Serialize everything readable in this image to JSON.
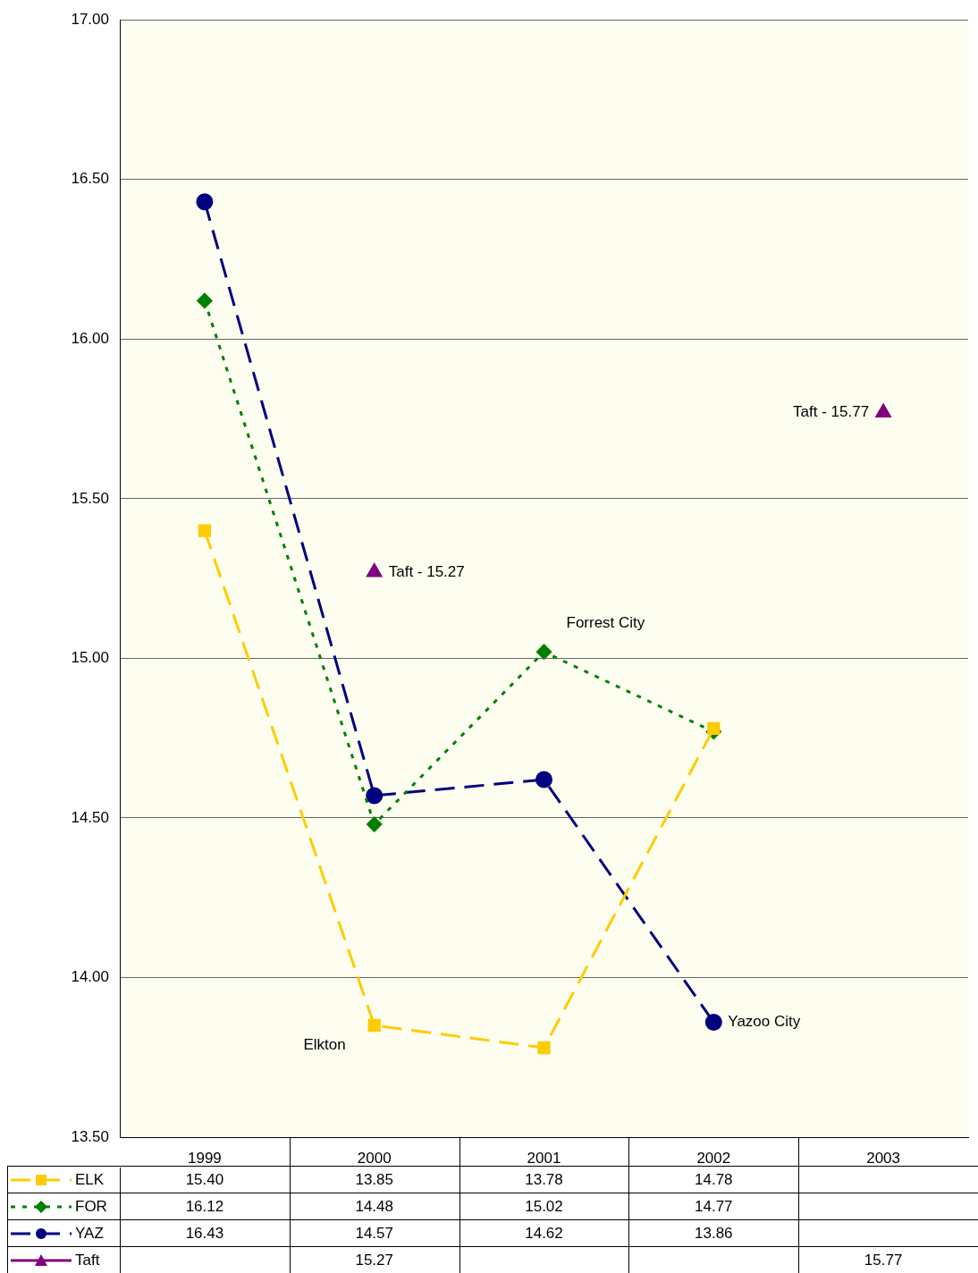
{
  "chart_data": {
    "type": "line",
    "categories": [
      "1999",
      "2000",
      "2001",
      "2002",
      "2003"
    ],
    "series": [
      {
        "name": "ELK",
        "color": "#ffcc00",
        "marker": "square",
        "line_style": "dashed",
        "values": [
          15.4,
          13.85,
          13.78,
          14.78,
          null
        ],
        "value_labels": [
          "15.40",
          "13.85",
          "13.78",
          "14.78",
          null
        ]
      },
      {
        "name": "FOR",
        "color": "#008000",
        "marker": "diamond",
        "line_style": "dotted",
        "values": [
          16.12,
          14.48,
          15.02,
          14.77,
          null
        ],
        "value_labels": [
          "16.12",
          "14.48",
          "15.02",
          "14.77",
          null
        ]
      },
      {
        "name": "YAZ",
        "color": "#000080",
        "marker": "circle",
        "line_style": "dashed",
        "values": [
          16.43,
          14.57,
          14.62,
          13.86,
          null
        ],
        "value_labels": [
          "16.43",
          "14.57",
          "14.62",
          "13.86",
          null
        ]
      },
      {
        "name": "Taft",
        "type": "scatter",
        "color": "#800080",
        "marker": "triangle",
        "line_style": "solid",
        "values": [
          null,
          15.27,
          null,
          null,
          15.77
        ],
        "value_labels": [
          null,
          "15.27",
          null,
          null,
          "15.77"
        ]
      }
    ],
    "ylim": [
      13.5,
      17
    ],
    "yticks": [
      {
        "value": 13.5,
        "label": "13.50"
      },
      {
        "value": 14,
        "label": "14.00"
      },
      {
        "value": 14.5,
        "label": "14.50"
      },
      {
        "value": 15,
        "label": "15.00"
      },
      {
        "value": 15.5,
        "label": "15.50"
      },
      {
        "value": 16,
        "label": "16.00"
      },
      {
        "value": 16.5,
        "label": "16.50"
      },
      {
        "value": 17,
        "label": "17.00"
      }
    ],
    "grid": "y",
    "legend": "bottom",
    "annotations": [
      {
        "text": "Taft - 15.27",
        "x": "2000",
        "y": 15.27
      },
      {
        "text": "Taft - 15.77",
        "x": "2003",
        "y": 15.77
      },
      {
        "text": "Forrest City",
        "x": "2001",
        "y": 15.02
      },
      {
        "text": "Elkton",
        "x": "2000",
        "y": 13.85
      },
      {
        "text": "Yazoo City",
        "x": "2002",
        "y": 13.86
      }
    ]
  }
}
